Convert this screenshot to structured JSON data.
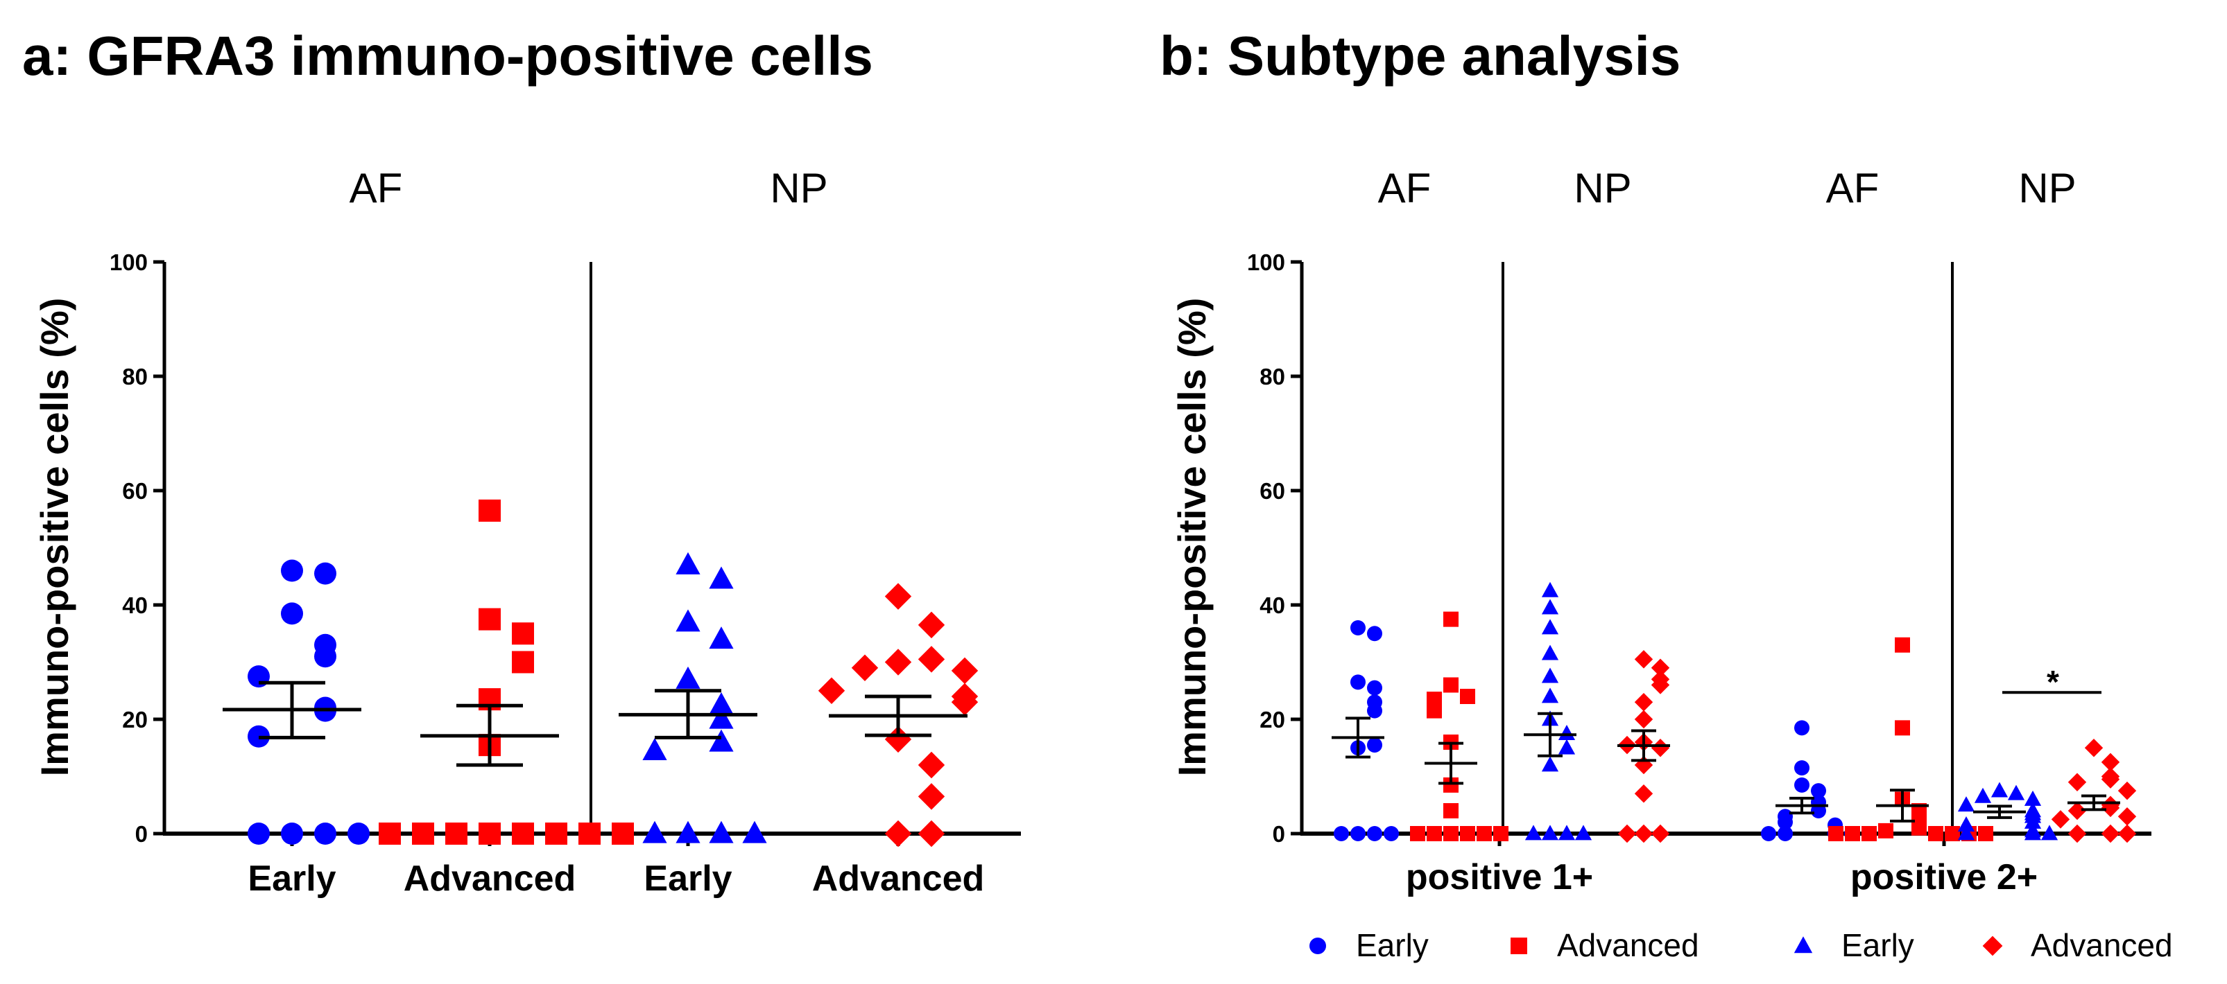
{
  "chart_data": [
    {
      "panel": "a",
      "type": "scatter",
      "title": "a: GFRA3 immuno-positive cells",
      "ylabel": "Immuno-positive cells (%)",
      "ylim": [
        0,
        100
      ],
      "yticks": [
        "0",
        "20",
        "40",
        "60",
        "80",
        "100"
      ],
      "regions": [
        "AF",
        "NP"
      ],
      "groups": [
        {
          "region": "AF",
          "label": "Early",
          "marker": "circle",
          "color": "#0000ff",
          "values": [
            46,
            45.5,
            38.5,
            33,
            31,
            27.5,
            22,
            21.5,
            17,
            0,
            0,
            0,
            0
          ],
          "mean": 21.7,
          "sem_low": 16.8,
          "sem_high": 26.4
        },
        {
          "region": "AF",
          "label": "Advanced",
          "marker": "square",
          "color": "#ff0000",
          "values": [
            56.5,
            37.5,
            35,
            30,
            23.5,
            15.5,
            0,
            0,
            0,
            0,
            0,
            0,
            0,
            0
          ],
          "mean": 17.1,
          "sem_low": 12,
          "sem_high": 22.4
        },
        {
          "region": "NP",
          "label": "Early",
          "marker": "triangle",
          "color": "#0000ff",
          "values": [
            47,
            44.5,
            37,
            34,
            27,
            22.5,
            20,
            16,
            14.5,
            0,
            0,
            0,
            0
          ],
          "mean": 20.8,
          "sem_low": 16.8,
          "sem_high": 25
        },
        {
          "region": "NP",
          "label": "Advanced",
          "marker": "diamond",
          "color": "#ff0000",
          "values": [
            41.5,
            36.5,
            30,
            30.5,
            29,
            28.5,
            25,
            24,
            23,
            16.5,
            12,
            6.5,
            0,
            0
          ],
          "mean": 20.6,
          "sem_low": 17.2,
          "sem_high": 24
        }
      ]
    },
    {
      "panel": "b",
      "type": "scatter",
      "title": "b: Subtype analysis",
      "ylabel": "Immuno-positive cells (%)",
      "ylim": [
        0,
        100
      ],
      "yticks": [
        "0",
        "20",
        "40",
        "60",
        "80",
        "100"
      ],
      "categories": [
        "positive 1+",
        "positive 2+"
      ],
      "regions": [
        "AF",
        "NP",
        "AF",
        "NP"
      ],
      "annotation": "*",
      "groups": [
        {
          "category": "positive 1+",
          "region": "AF",
          "label": "Early",
          "marker": "circle",
          "color": "#0000ff",
          "values": [
            36,
            35,
            26.5,
            25.5,
            23,
            21.5,
            15,
            15.5,
            0,
            0,
            0,
            0
          ],
          "mean": 16.8,
          "sem_low": 13.4,
          "sem_high": 20.2
        },
        {
          "category": "positive 1+",
          "region": "AF",
          "label": "Advanced",
          "marker": "square",
          "color": "#ff0000",
          "values": [
            37.5,
            26,
            24,
            23.5,
            21.5,
            16,
            8.5,
            4,
            0,
            0,
            0,
            0,
            0,
            0
          ],
          "mean": 12.3,
          "sem_low": 8.8,
          "sem_high": 15.8
        },
        {
          "category": "positive 1+",
          "region": "NP",
          "label": "Early",
          "marker": "triangle",
          "color": "#0000ff",
          "values": [
            42.5,
            39.5,
            36,
            31.5,
            27.5,
            24,
            20,
            17.5,
            15,
            12,
            0,
            0,
            0,
            0
          ],
          "mean": 17.3,
          "sem_low": 13.6,
          "sem_high": 21
        },
        {
          "category": "positive 1+",
          "region": "NP",
          "label": "Advanced",
          "marker": "diamond",
          "color": "#ff0000",
          "values": [
            30.5,
            29,
            27,
            26,
            23,
            20,
            16,
            15,
            15.5,
            12,
            7,
            0,
            0,
            0
          ],
          "mean": 15.4,
          "sem_low": 12.8,
          "sem_high": 18
        },
        {
          "category": "positive 2+",
          "region": "AF",
          "label": "Early",
          "marker": "circle",
          "color": "#0000ff",
          "values": [
            18.5,
            11.5,
            8.5,
            7.5,
            5.5,
            4,
            3,
            2,
            1.5,
            0,
            0,
            0,
            0
          ],
          "mean": 4.9,
          "sem_low": 3.6,
          "sem_high": 6.2
        },
        {
          "category": "positive 2+",
          "region": "AF",
          "label": "Advanced",
          "marker": "square",
          "color": "#ff0000",
          "values": [
            33,
            18.5,
            6,
            4,
            2,
            1,
            0.5,
            0,
            0,
            0,
            0,
            0,
            0,
            0
          ],
          "mean": 4.9,
          "sem_low": 2.2,
          "sem_high": 7.6
        },
        {
          "category": "positive 2+",
          "region": "NP",
          "label": "Early",
          "marker": "triangle",
          "color": "#0000ff",
          "values": [
            7.5,
            7,
            6.5,
            6,
            5,
            4,
            3.5,
            3,
            2,
            1.5,
            0.5,
            0,
            0,
            0
          ],
          "mean": 3.8,
          "sem_low": 2.8,
          "sem_high": 4.8
        },
        {
          "category": "positive 2+",
          "region": "NP",
          "label": "Advanced",
          "marker": "diamond",
          "color": "#ff0000",
          "values": [
            15,
            12.5,
            10,
            9.5,
            9,
            7.5,
            5,
            4.5,
            4,
            3,
            2.5,
            0,
            0,
            0
          ],
          "mean": 5.4,
          "sem_low": 4.2,
          "sem_high": 6.6
        }
      ],
      "legend": [
        {
          "label": "Early",
          "marker": "circle",
          "color": "#0000ff"
        },
        {
          "label": "Advanced",
          "marker": "square",
          "color": "#ff0000"
        },
        {
          "label": "Early",
          "marker": "triangle",
          "color": "#0000ff"
        },
        {
          "label": "Advanced",
          "marker": "diamond",
          "color": "#ff0000"
        }
      ]
    }
  ]
}
